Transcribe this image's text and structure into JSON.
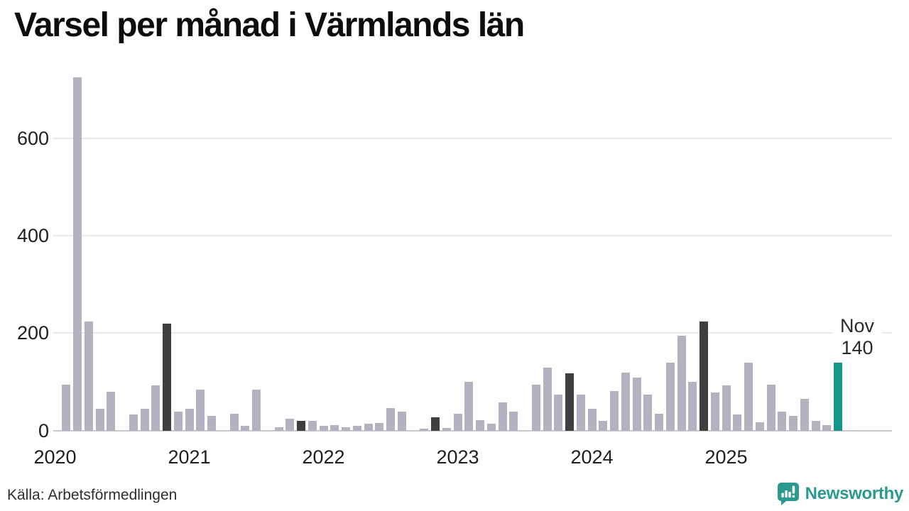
{
  "title": "Varsel per månad i Värmlands län",
  "source": "Källa: Arbetsförmedlingen",
  "branding": {
    "name": "Newsworthy"
  },
  "annotation": {
    "month_label": "Nov",
    "value_label": "140"
  },
  "y_axis": {
    "ticks": [
      0,
      200,
      400,
      600
    ]
  },
  "x_axis": {
    "years": [
      "2020",
      "2021",
      "2022",
      "2023",
      "2024",
      "2025"
    ]
  },
  "colors": {
    "bar_normal": "#b6b1c1",
    "bar_november": "#3f3f41",
    "bar_current": "#16968a",
    "grid": "#e8e8ed",
    "axis_line": "#c9c9cc",
    "brand_teal": "#2a998e",
    "text_dark": "#1f1f1f"
  },
  "chart_data": {
    "type": "bar",
    "title": "Varsel per månad i Värmlands län",
    "xlabel": "",
    "ylabel": "",
    "ylim": [
      0,
      740
    ],
    "grid": "horizontal",
    "legend": "none",
    "highlight": {
      "dark_months": [
        "2020-11",
        "2021-11",
        "2022-11",
        "2023-11",
        "2024-11"
      ],
      "accent_month": "2025-11",
      "accent_label": "Nov 140"
    },
    "months": [
      {
        "month": "2020-01",
        "value": 0
      },
      {
        "month": "2020-02",
        "value": 95
      },
      {
        "month": "2020-03",
        "value": 725
      },
      {
        "month": "2020-04",
        "value": 225
      },
      {
        "month": "2020-05",
        "value": 45
      },
      {
        "month": "2020-06",
        "value": 80
      },
      {
        "month": "2020-07",
        "value": 0
      },
      {
        "month": "2020-08",
        "value": 33
      },
      {
        "month": "2020-09",
        "value": 45
      },
      {
        "month": "2020-10",
        "value": 93
      },
      {
        "month": "2020-11",
        "value": 220
      },
      {
        "month": "2020-12",
        "value": 40
      },
      {
        "month": "2021-01",
        "value": 45
      },
      {
        "month": "2021-02",
        "value": 85
      },
      {
        "month": "2021-03",
        "value": 30
      },
      {
        "month": "2021-04",
        "value": 0
      },
      {
        "month": "2021-05",
        "value": 35
      },
      {
        "month": "2021-06",
        "value": 10
      },
      {
        "month": "2021-07",
        "value": 85
      },
      {
        "month": "2021-08",
        "value": 0
      },
      {
        "month": "2021-09",
        "value": 7
      },
      {
        "month": "2021-10",
        "value": 25
      },
      {
        "month": "2021-11",
        "value": 20
      },
      {
        "month": "2021-12",
        "value": 20
      },
      {
        "month": "2022-01",
        "value": 10
      },
      {
        "month": "2022-02",
        "value": 11
      },
      {
        "month": "2022-03",
        "value": 8
      },
      {
        "month": "2022-04",
        "value": 10
      },
      {
        "month": "2022-05",
        "value": 14
      },
      {
        "month": "2022-06",
        "value": 16
      },
      {
        "month": "2022-07",
        "value": 47
      },
      {
        "month": "2022-08",
        "value": 39
      },
      {
        "month": "2022-09",
        "value": 0
      },
      {
        "month": "2022-10",
        "value": 5
      },
      {
        "month": "2022-11",
        "value": 28
      },
      {
        "month": "2022-12",
        "value": 6
      },
      {
        "month": "2023-01",
        "value": 35
      },
      {
        "month": "2023-02",
        "value": 100
      },
      {
        "month": "2023-03",
        "value": 22
      },
      {
        "month": "2023-04",
        "value": 15
      },
      {
        "month": "2023-05",
        "value": 58
      },
      {
        "month": "2023-06",
        "value": 40
      },
      {
        "month": "2023-07",
        "value": 0
      },
      {
        "month": "2023-08",
        "value": 95
      },
      {
        "month": "2023-09",
        "value": 130
      },
      {
        "month": "2023-10",
        "value": 75
      },
      {
        "month": "2023-11",
        "value": 118
      },
      {
        "month": "2023-12",
        "value": 75
      },
      {
        "month": "2024-01",
        "value": 45
      },
      {
        "month": "2024-02",
        "value": 20
      },
      {
        "month": "2024-03",
        "value": 82
      },
      {
        "month": "2024-04",
        "value": 120
      },
      {
        "month": "2024-05",
        "value": 110
      },
      {
        "month": "2024-06",
        "value": 75
      },
      {
        "month": "2024-07",
        "value": 35
      },
      {
        "month": "2024-08",
        "value": 140
      },
      {
        "month": "2024-09",
        "value": 195
      },
      {
        "month": "2024-10",
        "value": 100
      },
      {
        "month": "2024-11",
        "value": 225
      },
      {
        "month": "2024-12",
        "value": 78
      },
      {
        "month": "2025-01",
        "value": 93
      },
      {
        "month": "2025-02",
        "value": 34
      },
      {
        "month": "2025-03",
        "value": 140
      },
      {
        "month": "2025-04",
        "value": 18
      },
      {
        "month": "2025-05",
        "value": 95
      },
      {
        "month": "2025-06",
        "value": 39
      },
      {
        "month": "2025-07",
        "value": 31
      },
      {
        "month": "2025-08",
        "value": 65
      },
      {
        "month": "2025-09",
        "value": 21
      },
      {
        "month": "2025-10",
        "value": 12
      },
      {
        "month": "2025-11",
        "value": 140
      }
    ]
  }
}
